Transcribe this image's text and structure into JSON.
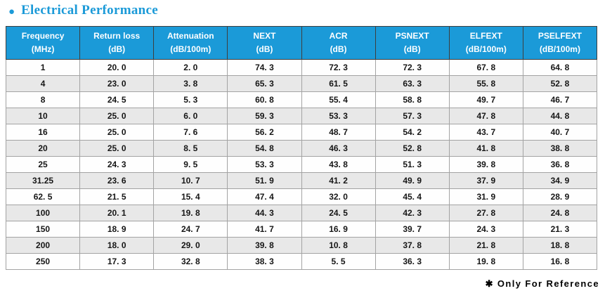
{
  "title": {
    "bullet": "●",
    "text": "Electrical Performance"
  },
  "colors": {
    "accent": "#1b9ad8",
    "header_text": "#ffffff",
    "row_alt": "#e8e8e8",
    "cell_border": "#a3a3a3",
    "header_border": "#3e3e3e",
    "body_text": "#161616"
  },
  "table": {
    "columns": [
      {
        "label": "Frequency",
        "unit": "(MHz)"
      },
      {
        "label": "Return loss",
        "unit": "(dB)"
      },
      {
        "label": "Attenuation",
        "unit": "(dB/100m)"
      },
      {
        "label": "NEXT",
        "unit": "(dB)"
      },
      {
        "label": "ACR",
        "unit": "(dB)"
      },
      {
        "label": "PSNEXT",
        "unit": "(dB)"
      },
      {
        "label": "ELFEXT",
        "unit": "(dB/100m)"
      },
      {
        "label": "PSELFEXT",
        "unit": "(dB/100m)"
      }
    ],
    "rows": [
      [
        "1",
        "20. 0",
        "2. 0",
        "74. 3",
        "72. 3",
        "72. 3",
        "67. 8",
        "64. 8"
      ],
      [
        "4",
        "23. 0",
        "3. 8",
        "65. 3",
        "61. 5",
        "63. 3",
        "55. 8",
        "52. 8"
      ],
      [
        "8",
        "24. 5",
        "5. 3",
        "60. 8",
        "55. 4",
        "58. 8",
        "49. 7",
        "46. 7"
      ],
      [
        "10",
        "25. 0",
        "6. 0",
        "59. 3",
        "53. 3",
        "57. 3",
        "47. 8",
        "44. 8"
      ],
      [
        "16",
        "25. 0",
        "7. 6",
        "56. 2",
        "48. 7",
        "54. 2",
        "43. 7",
        "40. 7"
      ],
      [
        "20",
        "25. 0",
        "8. 5",
        "54. 8",
        "46. 3",
        "52. 8",
        "41. 8",
        "38. 8"
      ],
      [
        "25",
        "24. 3",
        "9. 5",
        "53. 3",
        "43. 8",
        "51. 3",
        "39. 8",
        "36. 8"
      ],
      [
        "31.25",
        "23. 6",
        "10. 7",
        "51. 9",
        "41. 2",
        "49. 9",
        "37. 9",
        "34. 9"
      ],
      [
        "62. 5",
        "21. 5",
        "15. 4",
        "47. 4",
        "32. 0",
        "45. 4",
        "31. 9",
        "28. 9"
      ],
      [
        "100",
        "20. 1",
        "19. 8",
        "44. 3",
        "24. 5",
        "42. 3",
        "27. 8",
        "24. 8"
      ],
      [
        "150",
        "18. 9",
        "24. 7",
        "41. 7",
        "16. 9",
        "39. 7",
        "24. 3",
        "21. 3"
      ],
      [
        "200",
        "18. 0",
        "29. 0",
        "39. 8",
        "10. 8",
        "37. 8",
        "21. 8",
        "18. 8"
      ],
      [
        "250",
        "17. 3",
        "32. 8",
        "38. 3",
        "5. 5",
        "36. 3",
        "19. 8",
        "16. 8"
      ]
    ]
  },
  "footer": {
    "note": "✱ Only For Reference"
  }
}
